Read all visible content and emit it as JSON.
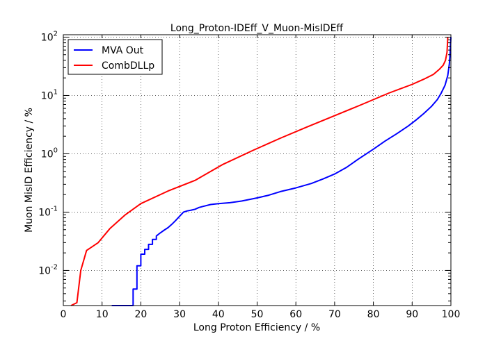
{
  "chart_data": {
    "type": "line",
    "title": "Long_Proton-IDEff_V_Muon-MisIDEff",
    "xlabel": "Long Proton Efficiency / %",
    "ylabel": "Muon MisID Efficiency / %",
    "xlim": [
      0,
      100
    ],
    "ylim": [
      0.0025,
      110
    ],
    "yscale": "log",
    "grid": true,
    "legend_position": "top-left",
    "x_ticks": [
      0,
      10,
      20,
      30,
      40,
      50,
      60,
      70,
      80,
      90,
      100
    ],
    "x_tick_labels": [
      "0",
      "10",
      "20",
      "30",
      "40",
      "50",
      "60",
      "70",
      "80",
      "90",
      "100"
    ],
    "y_ticks": [
      0.01,
      0.1,
      1,
      10,
      100
    ],
    "y_tick_labels": [
      {
        "base": "10",
        "exp": "-2"
      },
      {
        "base": "10",
        "exp": "-1"
      },
      {
        "base": "10",
        "exp": "0"
      },
      {
        "base": "10",
        "exp": "1"
      },
      {
        "base": "10",
        "exp": "2"
      }
    ],
    "series": [
      {
        "name": "MVA Out",
        "color": "#0000ff",
        "x": [
          12.5,
          18.0,
          18.0,
          19.0,
          19.0,
          20.0,
          20.0,
          21.0,
          21.0,
          22.0,
          22.0,
          23.0,
          23.0,
          24.0,
          24.0,
          25.0,
          26.0,
          27.0,
          28.0,
          29.0,
          30.0,
          31.0,
          32.0,
          33.0,
          34.0,
          35.0,
          36.0,
          38.0,
          40.0,
          43.0,
          46.0,
          50.0,
          53.0,
          56.0,
          60.0,
          64.0,
          67.0,
          70.0,
          73.0,
          76.0,
          80.0,
          83.0,
          86.0,
          89.0,
          91.0,
          93.0,
          95.0,
          96.5,
          97.5,
          98.5,
          99.2,
          99.6,
          99.8,
          100.0
        ],
        "y": [
          0.0025,
          0.0025,
          0.0048,
          0.0048,
          0.012,
          0.012,
          0.019,
          0.019,
          0.023,
          0.023,
          0.028,
          0.028,
          0.034,
          0.034,
          0.039,
          0.044,
          0.049,
          0.054,
          0.062,
          0.072,
          0.085,
          0.1,
          0.105,
          0.108,
          0.112,
          0.12,
          0.125,
          0.135,
          0.14,
          0.145,
          0.155,
          0.175,
          0.195,
          0.225,
          0.26,
          0.31,
          0.37,
          0.45,
          0.58,
          0.8,
          1.2,
          1.65,
          2.2,
          3.0,
          3.8,
          4.9,
          6.5,
          8.5,
          11.0,
          15.0,
          22.0,
          35.0,
          55.0,
          100.0
        ]
      },
      {
        "name": "CombDLLp",
        "color": "#ff0000",
        "x": [
          2.0,
          3.5,
          4.5,
          6.0,
          9.0,
          12.0,
          16.0,
          20.0,
          27.0,
          34.0,
          41.0,
          49.0,
          56.0,
          63.0,
          70.0,
          77.0,
          84.0,
          90.0,
          93.0,
          95.5,
          97.0,
          98.0,
          98.6,
          99.0,
          99.1,
          99.2
        ],
        "y": [
          0.0025,
          0.0028,
          0.01,
          0.022,
          0.03,
          0.052,
          0.09,
          0.14,
          0.23,
          0.35,
          0.65,
          1.15,
          1.85,
          2.9,
          4.5,
          7.0,
          11.0,
          15.5,
          19.0,
          23.0,
          28.0,
          33.0,
          40.0,
          55.0,
          75.0,
          100.0
        ]
      }
    ]
  }
}
